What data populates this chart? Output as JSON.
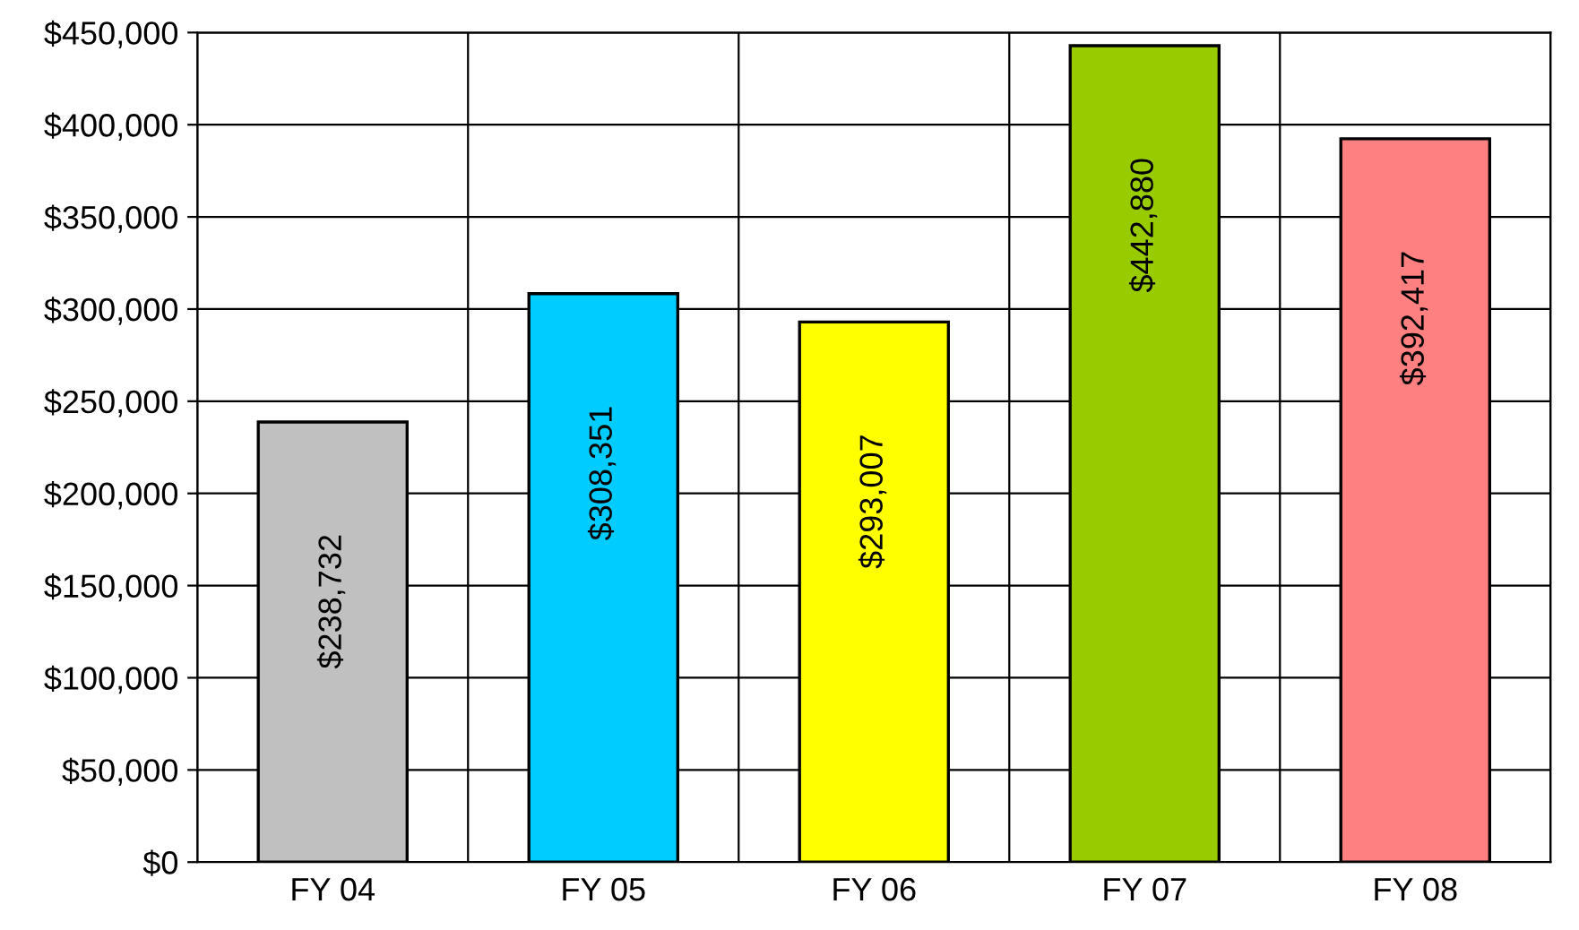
{
  "chart_data": {
    "type": "bar",
    "categories": [
      "FY 04",
      "FY 05",
      "FY 06",
      "FY 07",
      "FY 08"
    ],
    "values": [
      238732,
      308351,
      293007,
      442880,
      392417
    ],
    "colors": [
      "#c0c0c0",
      "#00ccff",
      "#ffff00",
      "#99cc00",
      "#ff8080"
    ],
    "value_labels": [
      "$238,732",
      "$308,351",
      "$293,007",
      "$442,880",
      "$392,417"
    ],
    "ylim": [
      0,
      450000
    ],
    "yticks": [
      {
        "value": 0,
        "label": "$0"
      },
      {
        "value": 50000,
        "label": "$50,000"
      },
      {
        "value": 100000,
        "label": "$100,000"
      },
      {
        "value": 150000,
        "label": "$150,000"
      },
      {
        "value": 200000,
        "label": "$200,000"
      },
      {
        "value": 250000,
        "label": "$250,000"
      },
      {
        "value": 300000,
        "label": "$300,000"
      },
      {
        "value": 350000,
        "label": "$350,000"
      },
      {
        "value": 400000,
        "label": "$400,000"
      },
      {
        "value": 450000,
        "label": "$450,000"
      }
    ],
    "grid": true
  }
}
